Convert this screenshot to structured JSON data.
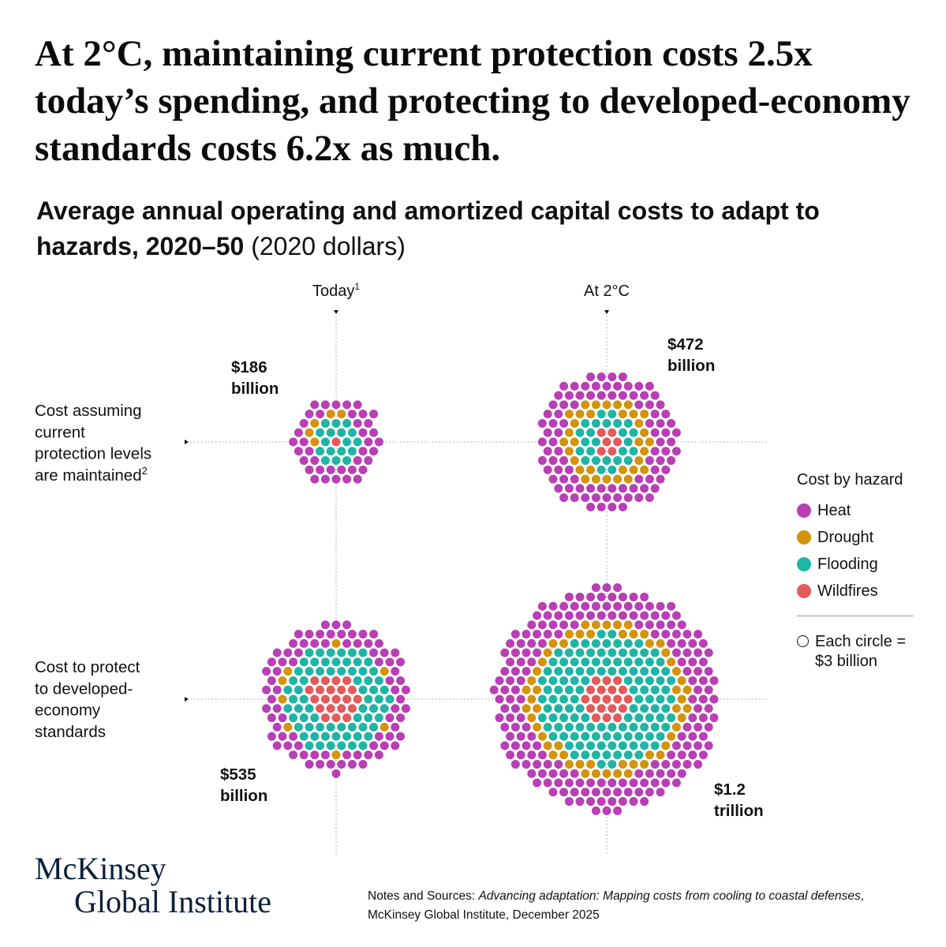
{
  "headline": "At 2°C, maintaining current protection costs 2.5x today’s spending, and protecting to developed-economy standards costs 6.2x as much.",
  "subtitle": {
    "bold": "Average annual operating and amortized capital costs to adapt to hazards, 2020–50",
    "normal": " (2020 dollars)"
  },
  "colors": {
    "heat": "#b83fb4",
    "drought": "#d4930c",
    "flooding": "#1fb5a5",
    "wildfires": "#e45a5a",
    "gridline": "#9a9a9a"
  },
  "chart_data": {
    "type": "unit-dot-matrix",
    "unit": "Each circle = $3 billion",
    "columns": [
      {
        "label": "Today",
        "footnote": "1"
      },
      {
        "label": "At 2°C",
        "footnote": ""
      }
    ],
    "rows": [
      {
        "label": [
          "Cost assuming",
          "current",
          "protection levels",
          "are maintained"
        ],
        "footnote": "2"
      },
      {
        "label": [
          "Cost to protect",
          "to developed-",
          "economy",
          "standards"
        ],
        "footnote": ""
      }
    ],
    "hazards": [
      "Heat",
      "Drought",
      "Flooding",
      "Wildfires"
    ],
    "cells": [
      {
        "row": 0,
        "col": 0,
        "total_label": [
          "$186",
          "billion"
        ],
        "total_billion": 186,
        "circles": {
          "heat": 39,
          "drought": 5,
          "flooding": 17,
          "wildfires": 1
        }
      },
      {
        "row": 0,
        "col": 1,
        "total_label": [
          "$472",
          "billion"
        ],
        "total_billion": 472,
        "circles": {
          "heat": 93,
          "drought": 33,
          "flooding": 25,
          "wildfires": 6
        }
      },
      {
        "row": 1,
        "col": 0,
        "total_label": [
          "$535",
          "billion"
        ],
        "total_billion": 535,
        "circles": {
          "heat": 80,
          "drought": 8,
          "flooding": 69,
          "wildfires": 21
        }
      },
      {
        "row": 1,
        "col": 1,
        "total_label": [
          "$1.2",
          "trillion"
        ],
        "total_billion": 1200,
        "circles": {
          "heat": 197,
          "drought": 57,
          "flooding": 127,
          "wildfires": 19
        }
      }
    ]
  },
  "legend": {
    "title": "Cost by hazard",
    "items": [
      {
        "label": "Heat",
        "color": "#b83fb4"
      },
      {
        "label": "Drought",
        "color": "#d4930c"
      },
      {
        "label": "Flooding",
        "color": "#1fb5a5"
      },
      {
        "label": "Wildfires",
        "color": "#e45a5a"
      }
    ],
    "note_line1": "Each circle =",
    "note_line2": "$3 billion"
  },
  "logo": {
    "line1": "McKinsey",
    "line2": "Global Institute"
  },
  "notes": {
    "prefix": "Notes and Sources: ",
    "italic": "Advancing adaptation: Mapping costs from cooling to coastal defenses",
    "suffix": ",",
    "line2": "McKinsey Global Institute, December 2025"
  }
}
